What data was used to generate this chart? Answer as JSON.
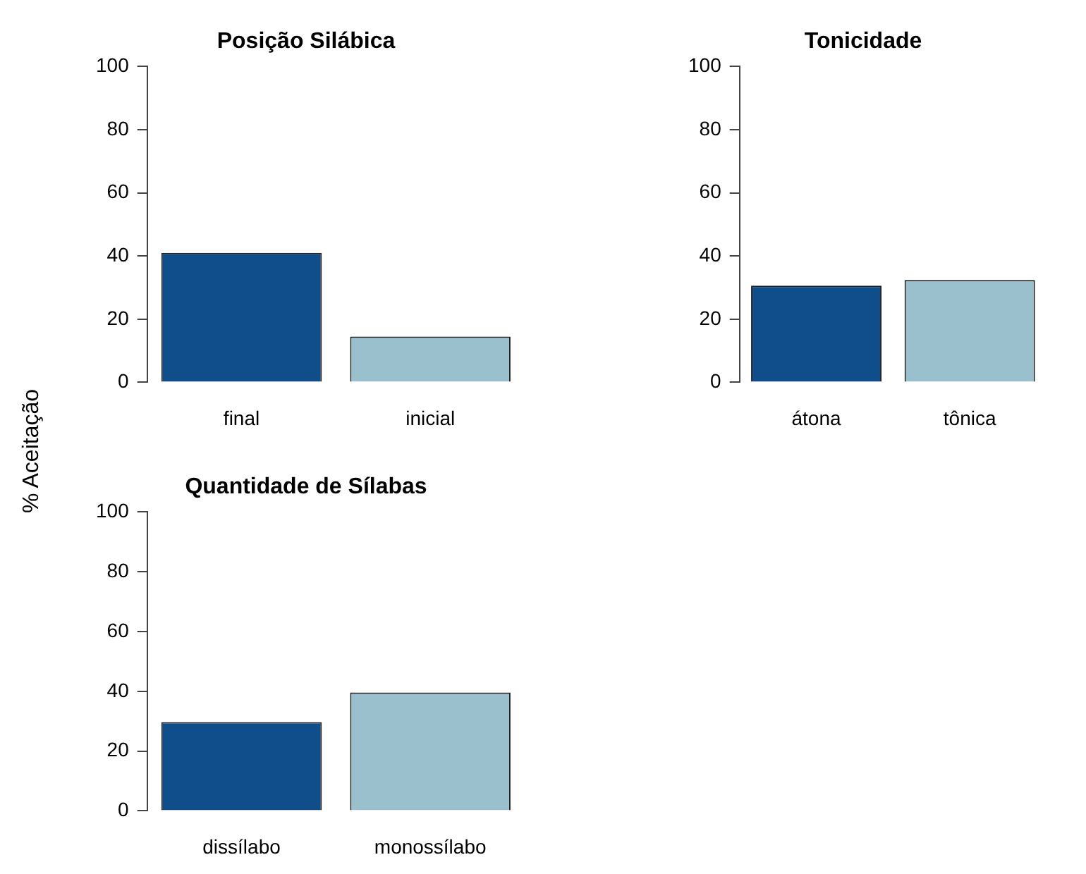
{
  "chart_data": [
    {
      "type": "bar",
      "title": "Posição Silábica",
      "ylabel": "% Aceitação",
      "categories": [
        "final",
        "inicial"
      ],
      "values": [
        41,
        14.5
      ],
      "colors": [
        "#104e8b",
        "#9ac0cd"
      ],
      "ylim": [
        0,
        100
      ],
      "yticks": [
        0,
        20,
        40,
        60,
        80,
        100
      ]
    },
    {
      "type": "bar",
      "title": "Tonicidade",
      "categories": [
        "átona",
        "tônica"
      ],
      "values": [
        30.6,
        32.4
      ],
      "colors": [
        "#104e8b",
        "#9ac0cd"
      ],
      "ylim": [
        0,
        100
      ],
      "yticks": [
        0,
        20,
        40,
        60,
        80,
        100
      ]
    },
    {
      "type": "bar",
      "title": "Quantidade de Sílabas",
      "categories": [
        "dissílabo",
        "monossílabo"
      ],
      "values": [
        29.7,
        39.6
      ],
      "colors": [
        "#104e8b",
        "#9ac0cd"
      ],
      "ylim": [
        0,
        100
      ],
      "yticks": [
        0,
        20,
        40,
        60,
        80,
        100
      ]
    }
  ]
}
